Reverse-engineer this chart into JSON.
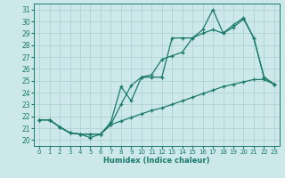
{
  "xlabel": "Humidex (Indice chaleur)",
  "xlim": [
    -0.5,
    23.5
  ],
  "ylim": [
    19.5,
    31.5
  ],
  "xticks": [
    0,
    1,
    2,
    3,
    4,
    5,
    6,
    7,
    8,
    9,
    10,
    11,
    12,
    13,
    14,
    15,
    16,
    17,
    18,
    19,
    20,
    21,
    22,
    23
  ],
  "yticks": [
    20,
    21,
    22,
    23,
    24,
    25,
    26,
    27,
    28,
    29,
    30,
    31
  ],
  "bg_color": "#cce8e8",
  "line_color": "#1a7a6a",
  "grid_color": "#aacfcf",
  "line1_x": [
    0,
    1,
    2,
    3,
    4,
    5,
    6,
    7,
    8,
    9,
    10,
    11,
    12,
    13,
    14,
    15,
    16,
    17,
    18,
    19,
    20,
    21,
    22,
    23
  ],
  "line1_y": [
    21.7,
    21.7,
    21.1,
    20.6,
    20.5,
    20.2,
    20.5,
    21.5,
    24.5,
    23.3,
    25.3,
    25.3,
    25.3,
    28.6,
    28.6,
    28.6,
    29.3,
    31.0,
    29.0,
    29.7,
    30.3,
    28.6,
    25.3,
    24.7
  ],
  "line2_x": [
    0,
    1,
    2,
    3,
    4,
    5,
    6,
    7,
    8,
    9,
    10,
    11,
    12,
    13,
    14,
    15,
    16,
    17,
    18,
    19,
    20,
    21,
    22,
    23
  ],
  "line2_y": [
    21.7,
    21.7,
    21.1,
    20.6,
    20.5,
    20.5,
    20.5,
    21.3,
    23.0,
    24.6,
    25.3,
    25.5,
    26.8,
    27.1,
    27.4,
    28.6,
    29.0,
    29.3,
    29.0,
    29.5,
    30.2,
    28.6,
    25.3,
    24.7
  ],
  "line3_x": [
    0,
    1,
    2,
    3,
    4,
    5,
    6,
    7,
    8,
    9,
    10,
    11,
    12,
    13,
    14,
    15,
    16,
    17,
    18,
    19,
    20,
    21,
    22,
    23
  ],
  "line3_y": [
    21.7,
    21.7,
    21.1,
    20.6,
    20.5,
    20.5,
    20.5,
    21.3,
    21.6,
    21.9,
    22.2,
    22.5,
    22.7,
    23.0,
    23.3,
    23.6,
    23.9,
    24.2,
    24.5,
    24.7,
    24.9,
    25.1,
    25.1,
    24.7
  ]
}
